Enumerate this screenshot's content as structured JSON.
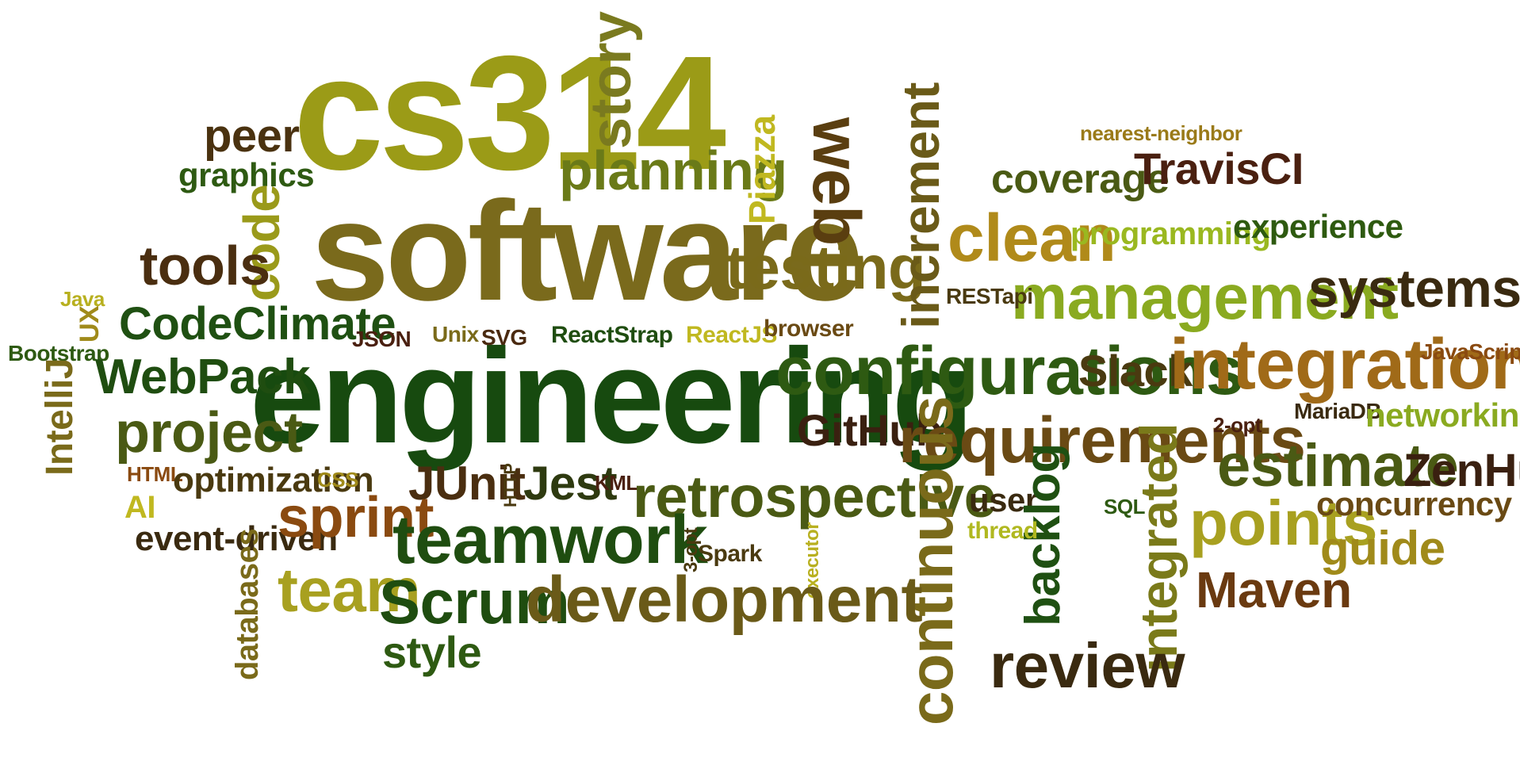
{
  "cloud": {
    "palette": {
      "dark_green": "#1f4d12",
      "deep_green": "#0f3b10",
      "olive": "#7a6a1a",
      "gold": "#a8a020",
      "brown": "#4a2a10",
      "dark_brown": "#3a2010",
      "lime": "#8fb020",
      "rust": "#8a4a10"
    },
    "words": [
      {
        "text": "cs314",
        "color": "#9b9b17",
        "rotate": 0
      },
      {
        "text": "software",
        "color": "#7a6a1c",
        "rotate": 0
      },
      {
        "text": "engineering",
        "color": "#174a0f",
        "rotate": 0
      },
      {
        "text": "story",
        "color": "#7a7a1f",
        "rotate": -90
      },
      {
        "text": "planning",
        "color": "#6a7a18",
        "rotate": 0
      },
      {
        "text": "peer",
        "color": "#4a3210",
        "rotate": 0
      },
      {
        "text": "graphics",
        "color": "#2e5a12",
        "rotate": 0
      },
      {
        "text": "code",
        "color": "#9a9a1a",
        "rotate": -90
      },
      {
        "text": "tools",
        "color": "#4a2e10",
        "rotate": 0
      },
      {
        "text": "Piazza",
        "color": "#c0b820",
        "rotate": -90
      },
      {
        "text": "web",
        "color": "#5a3e10",
        "rotate": 90
      },
      {
        "text": "testing",
        "color": "#7a6a1a",
        "rotate": 0
      },
      {
        "text": "increment",
        "color": "#6a5a18",
        "rotate": -90
      },
      {
        "text": "clean",
        "color": "#b08a1a",
        "rotate": 0
      },
      {
        "text": "coverage",
        "color": "#4a5a14",
        "rotate": 0
      },
      {
        "text": "TravisCI",
        "color": "#4a2010",
        "rotate": 0
      },
      {
        "text": "nearest-neighbor",
        "color": "#9a7a18",
        "rotate": 0
      },
      {
        "text": "programming",
        "color": "#9ab820",
        "rotate": 0
      },
      {
        "text": "experience",
        "color": "#2e5a10",
        "rotate": 0
      },
      {
        "text": "management",
        "color": "#8aaa20",
        "rotate": 0
      },
      {
        "text": "systems",
        "color": "#3a2a10",
        "rotate": 0
      },
      {
        "text": "RESTapi",
        "color": "#4a3a10",
        "rotate": 0
      },
      {
        "text": "Java",
        "color": "#b8b020",
        "rotate": 0
      },
      {
        "text": "UX",
        "color": "#a08a1a",
        "rotate": -90
      },
      {
        "text": "Bootstrap",
        "color": "#2e5a12",
        "rotate": 0
      },
      {
        "text": "IntelliJ",
        "color": "#7a6a1a",
        "rotate": -90
      },
      {
        "text": "CodeClimate",
        "color": "#1f5012",
        "rotate": 0
      },
      {
        "text": "WebPack",
        "color": "#1f4d10",
        "rotate": 0
      },
      {
        "text": "project",
        "color": "#4a5a14",
        "rotate": 0
      },
      {
        "text": "JSON",
        "color": "#4a2010",
        "rotate": 0
      },
      {
        "text": "Unix",
        "color": "#7a6a1a",
        "rotate": 0
      },
      {
        "text": "SVG",
        "color": "#4a2a10",
        "rotate": 0
      },
      {
        "text": "ReactStrap",
        "color": "#1f4d10",
        "rotate": 0
      },
      {
        "text": "ReactJS",
        "color": "#c0b820",
        "rotate": 0
      },
      {
        "text": "browser",
        "color": "#6a4a14",
        "rotate": 0
      },
      {
        "text": "configurations",
        "color": "#2e5a12",
        "rotate": 0
      },
      {
        "text": "Slack",
        "color": "#4a3a10",
        "rotate": 0
      },
      {
        "text": "integration",
        "color": "#a06a18",
        "rotate": 0
      },
      {
        "text": "JavaScript",
        "color": "#8a4a10",
        "rotate": 0
      },
      {
        "text": "MariaDB",
        "color": "#3a2a10",
        "rotate": 0
      },
      {
        "text": "networking",
        "color": "#8aaa20",
        "rotate": 0
      },
      {
        "text": "GitHub",
        "color": "#3a2010",
        "rotate": 0
      },
      {
        "text": "requirements",
        "color": "#6a4a14",
        "rotate": 0
      },
      {
        "text": "2-opt",
        "color": "#4a2010",
        "rotate": 0
      },
      {
        "text": "estimate",
        "color": "#4a5a14",
        "rotate": 0
      },
      {
        "text": "ZenHub",
        "color": "#3a2010",
        "rotate": 0
      },
      {
        "text": "HTML",
        "color": "#8a4a10",
        "rotate": 0
      },
      {
        "text": "optimization",
        "color": "#4a3a10",
        "rotate": 0
      },
      {
        "text": "CSS",
        "color": "#a08a1a",
        "rotate": 0
      },
      {
        "text": "AI",
        "color": "#c0b820",
        "rotate": 0
      },
      {
        "text": "JUnit",
        "color": "#4a2e10",
        "rotate": 0
      },
      {
        "text": "HTTP",
        "color": "#4a3a10",
        "rotate": -90
      },
      {
        "text": "Jest",
        "color": "#2e3a10",
        "rotate": 0
      },
      {
        "text": "KML",
        "color": "#4a2010",
        "rotate": 0
      },
      {
        "text": "retrospective",
        "color": "#4a5a14",
        "rotate": 0
      },
      {
        "text": "continuous",
        "color": "#7a6a1a",
        "rotate": -90
      },
      {
        "text": "user",
        "color": "#3a2a10",
        "rotate": 0
      },
      {
        "text": "backlog",
        "color": "#1f5012",
        "rotate": -90
      },
      {
        "text": "SQL",
        "color": "#2e5a12",
        "rotate": 0
      },
      {
        "text": "integrated",
        "color": "#7a7a1a",
        "rotate": -90
      },
      {
        "text": "points",
        "color": "#a8a020",
        "rotate": 0
      },
      {
        "text": "concurrency",
        "color": "#6a4a14",
        "rotate": 0
      },
      {
        "text": "event-driven",
        "color": "#3a2a10",
        "rotate": 0
      },
      {
        "text": "sprint",
        "color": "#8a4a10",
        "rotate": 0
      },
      {
        "text": "teamwork",
        "color": "#1f4d10",
        "rotate": 0
      },
      {
        "text": "thread",
        "color": "#b0b820",
        "rotate": 0
      },
      {
        "text": "guide",
        "color": "#a08a1a",
        "rotate": 0
      },
      {
        "text": "3-opt",
        "color": "#4a3a10",
        "rotate": -90
      },
      {
        "text": "Spark",
        "color": "#4a3a10",
        "rotate": 0
      },
      {
        "text": "executor",
        "color": "#b8b020",
        "rotate": -90
      },
      {
        "text": "databases",
        "color": "#7a6a1a",
        "rotate": -90
      },
      {
        "text": "team",
        "color": "#a8a020",
        "rotate": 0
      },
      {
        "text": "Scrum",
        "color": "#1f4d10",
        "rotate": 0
      },
      {
        "text": "development",
        "color": "#6a5a18",
        "rotate": 0
      },
      {
        "text": "Maven",
        "color": "#6a3a10",
        "rotate": 0
      },
      {
        "text": "style",
        "color": "#2e5a12",
        "rotate": 0
      },
      {
        "text": "review",
        "color": "#3a2a10",
        "rotate": 0
      }
    ]
  }
}
